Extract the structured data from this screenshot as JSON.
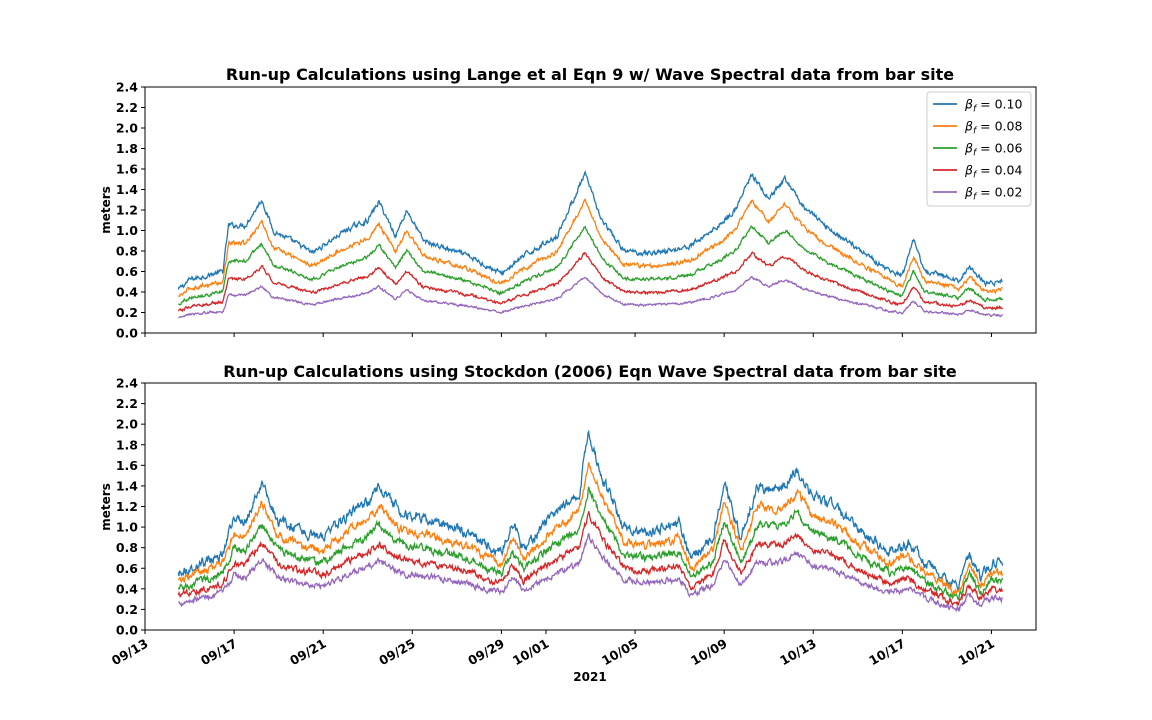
{
  "figure": {
    "xlabel": "2021"
  },
  "x_ticks": [
    "09/13",
    "09/17",
    "09/21",
    "09/25",
    "09/29",
    "10/01",
    "10/05",
    "10/09",
    "10/13",
    "10/17",
    "10/21"
  ],
  "chart_data": [
    {
      "type": "line",
      "title": "Run-up Calculations using Lange et al Eqn 9 w/ Wave Spectral data from bar site",
      "ylabel": "meters",
      "xlim": [
        "2021-09-13",
        "2021-10-23"
      ],
      "ylim": [
        0.0,
        2.4
      ],
      "y_ticks": [
        "0.0",
        "0.2",
        "0.4",
        "0.6",
        "0.8",
        "1.0",
        "1.2",
        "1.4",
        "1.6",
        "1.8",
        "2.0",
        "2.2",
        "2.4"
      ],
      "legend": "top-right",
      "series": [
        {
          "name": "βf = 0.10",
          "legend_label": "0.10",
          "color": "#1f77b4",
          "scale": 1.0,
          "noise": 0.03
        },
        {
          "name": "βf = 0.08",
          "legend_label": "0.08",
          "color": "#ff7f0e",
          "scale": 0.835,
          "noise": 0.025
        },
        {
          "name": "βf = 0.06",
          "legend_label": "0.06",
          "color": "#2ca02c",
          "scale": 0.67,
          "noise": 0.02
        },
        {
          "name": "βf = 0.04",
          "legend_label": "0.04",
          "color": "#d62728",
          "scale": 0.5,
          "noise": 0.018
        },
        {
          "name": "βf = 0.02",
          "legend_label": "0.02",
          "color": "#9467bd",
          "scale": 0.35,
          "noise": 0.014
        }
      ],
      "envelope": [
        [
          "2021-09-14T12:00",
          0.42
        ],
        [
          "2021-09-15T00:00",
          0.52
        ],
        [
          "2021-09-16T12:00",
          0.6
        ],
        [
          "2021-09-16T18:00",
          1.05
        ],
        [
          "2021-09-17T12:00",
          1.05
        ],
        [
          "2021-09-18T06:00",
          1.3
        ],
        [
          "2021-09-18T18:00",
          1.0
        ],
        [
          "2021-09-20T00:00",
          0.85
        ],
        [
          "2021-09-20T12:00",
          0.78
        ],
        [
          "2021-09-22T00:00",
          1.0
        ],
        [
          "2021-09-23T00:00",
          1.1
        ],
        [
          "2021-09-23T12:00",
          1.28
        ],
        [
          "2021-09-24T06:00",
          0.95
        ],
        [
          "2021-09-24T18:00",
          1.2
        ],
        [
          "2021-09-25T12:00",
          0.9
        ],
        [
          "2021-09-27T12:00",
          0.75
        ],
        [
          "2021-09-29T00:00",
          0.58
        ],
        [
          "2021-09-30T00:00",
          0.75
        ],
        [
          "2021-10-01T12:00",
          0.95
        ],
        [
          "2021-10-02T18:00",
          1.55
        ],
        [
          "2021-10-03T12:00",
          1.1
        ],
        [
          "2021-10-04T12:00",
          0.8
        ],
        [
          "2021-10-05T12:00",
          0.78
        ],
        [
          "2021-10-06T12:00",
          0.8
        ],
        [
          "2021-10-07T12:00",
          0.85
        ],
        [
          "2021-10-08T18:00",
          1.05
        ],
        [
          "2021-10-09T12:00",
          1.2
        ],
        [
          "2021-10-10T06:00",
          1.55
        ],
        [
          "2021-10-11T00:00",
          1.3
        ],
        [
          "2021-10-11T18:00",
          1.5
        ],
        [
          "2021-10-12T12:00",
          1.25
        ],
        [
          "2021-10-13T12:00",
          1.05
        ],
        [
          "2021-10-14T12:00",
          0.9
        ],
        [
          "2021-10-16T12:00",
          0.6
        ],
        [
          "2021-10-17T00:00",
          0.55
        ],
        [
          "2021-10-17T12:00",
          0.9
        ],
        [
          "2021-10-18T00:00",
          0.6
        ],
        [
          "2021-10-19T00:00",
          0.55
        ],
        [
          "2021-10-19T12:00",
          0.5
        ],
        [
          "2021-10-20T00:00",
          0.65
        ],
        [
          "2021-10-20T18:00",
          0.48
        ],
        [
          "2021-10-21T12:00",
          0.5
        ]
      ]
    },
    {
      "type": "line",
      "title": "Run-up Calculations using Stockdon (2006) Eqn Wave Spectral data from bar site",
      "ylabel": "meters",
      "xlim": [
        "2021-09-13",
        "2021-10-23"
      ],
      "ylim": [
        0.0,
        2.4
      ],
      "y_ticks": [
        "0.0",
        "0.2",
        "0.4",
        "0.6",
        "0.8",
        "1.0",
        "1.2",
        "1.4",
        "1.6",
        "1.8",
        "2.0",
        "2.2",
        "2.4"
      ],
      "series": [
        {
          "name": "βf = 0.10",
          "color": "#1f77b4",
          "scale": 1.0,
          "noise": 0.06
        },
        {
          "name": "βf = 0.08",
          "color": "#ff7f0e",
          "scale": 0.86,
          "noise": 0.05
        },
        {
          "name": "βf = 0.06",
          "color": "#2ca02c",
          "scale": 0.73,
          "noise": 0.045
        },
        {
          "name": "βf = 0.04",
          "color": "#d62728",
          "scale": 0.6,
          "noise": 0.04
        },
        {
          "name": "βf = 0.02",
          "color": "#9467bd",
          "scale": 0.48,
          "noise": 0.035
        }
      ],
      "envelope": [
        [
          "2021-09-14T12:00",
          0.55
        ],
        [
          "2021-09-15T12:00",
          0.65
        ],
        [
          "2021-09-16T12:00",
          0.75
        ],
        [
          "2021-09-17T00:00",
          1.1
        ],
        [
          "2021-09-17T12:00",
          1.05
        ],
        [
          "2021-09-18T06:00",
          1.42
        ],
        [
          "2021-09-19T00:00",
          1.05
        ],
        [
          "2021-09-20T00:00",
          0.95
        ],
        [
          "2021-09-21T00:00",
          0.9
        ],
        [
          "2021-09-22T00:00",
          1.1
        ],
        [
          "2021-09-23T00:00",
          1.25
        ],
        [
          "2021-09-23T12:00",
          1.4
        ],
        [
          "2021-09-24T12:00",
          1.15
        ],
        [
          "2021-09-26T00:00",
          1.05
        ],
        [
          "2021-09-27T12:00",
          0.95
        ],
        [
          "2021-09-28T12:00",
          0.8
        ],
        [
          "2021-09-29T00:00",
          0.75
        ],
        [
          "2021-09-29T12:00",
          1.05
        ],
        [
          "2021-09-30T00:00",
          0.8
        ],
        [
          "2021-10-01T00:00",
          1.05
        ],
        [
          "2021-10-02T12:00",
          1.35
        ],
        [
          "2021-10-02T22:00",
          1.9
        ],
        [
          "2021-10-03T12:00",
          1.5
        ],
        [
          "2021-10-04T12:00",
          1.0
        ],
        [
          "2021-10-05T12:00",
          0.95
        ],
        [
          "2021-10-06T12:00",
          1.0
        ],
        [
          "2021-10-07T00:00",
          1.05
        ],
        [
          "2021-10-07T12:00",
          0.7
        ],
        [
          "2021-10-08T12:00",
          0.9
        ],
        [
          "2021-10-09T00:00",
          1.45
        ],
        [
          "2021-10-09T18:00",
          0.9
        ],
        [
          "2021-10-10T12:00",
          1.4
        ],
        [
          "2021-10-11T12:00",
          1.35
        ],
        [
          "2021-10-12T06:00",
          1.55
        ],
        [
          "2021-10-13T00:00",
          1.3
        ],
        [
          "2021-10-14T00:00",
          1.2
        ],
        [
          "2021-10-15T12:00",
          0.9
        ],
        [
          "2021-10-16T12:00",
          0.75
        ],
        [
          "2021-10-17T06:00",
          0.85
        ],
        [
          "2021-10-18T00:00",
          0.65
        ],
        [
          "2021-10-19T00:00",
          0.5
        ],
        [
          "2021-10-19T12:00",
          0.4
        ],
        [
          "2021-10-20T00:00",
          0.75
        ],
        [
          "2021-10-20T12:00",
          0.5
        ],
        [
          "2021-10-21T00:00",
          0.65
        ],
        [
          "2021-10-21T12:00",
          0.65
        ]
      ]
    }
  ]
}
